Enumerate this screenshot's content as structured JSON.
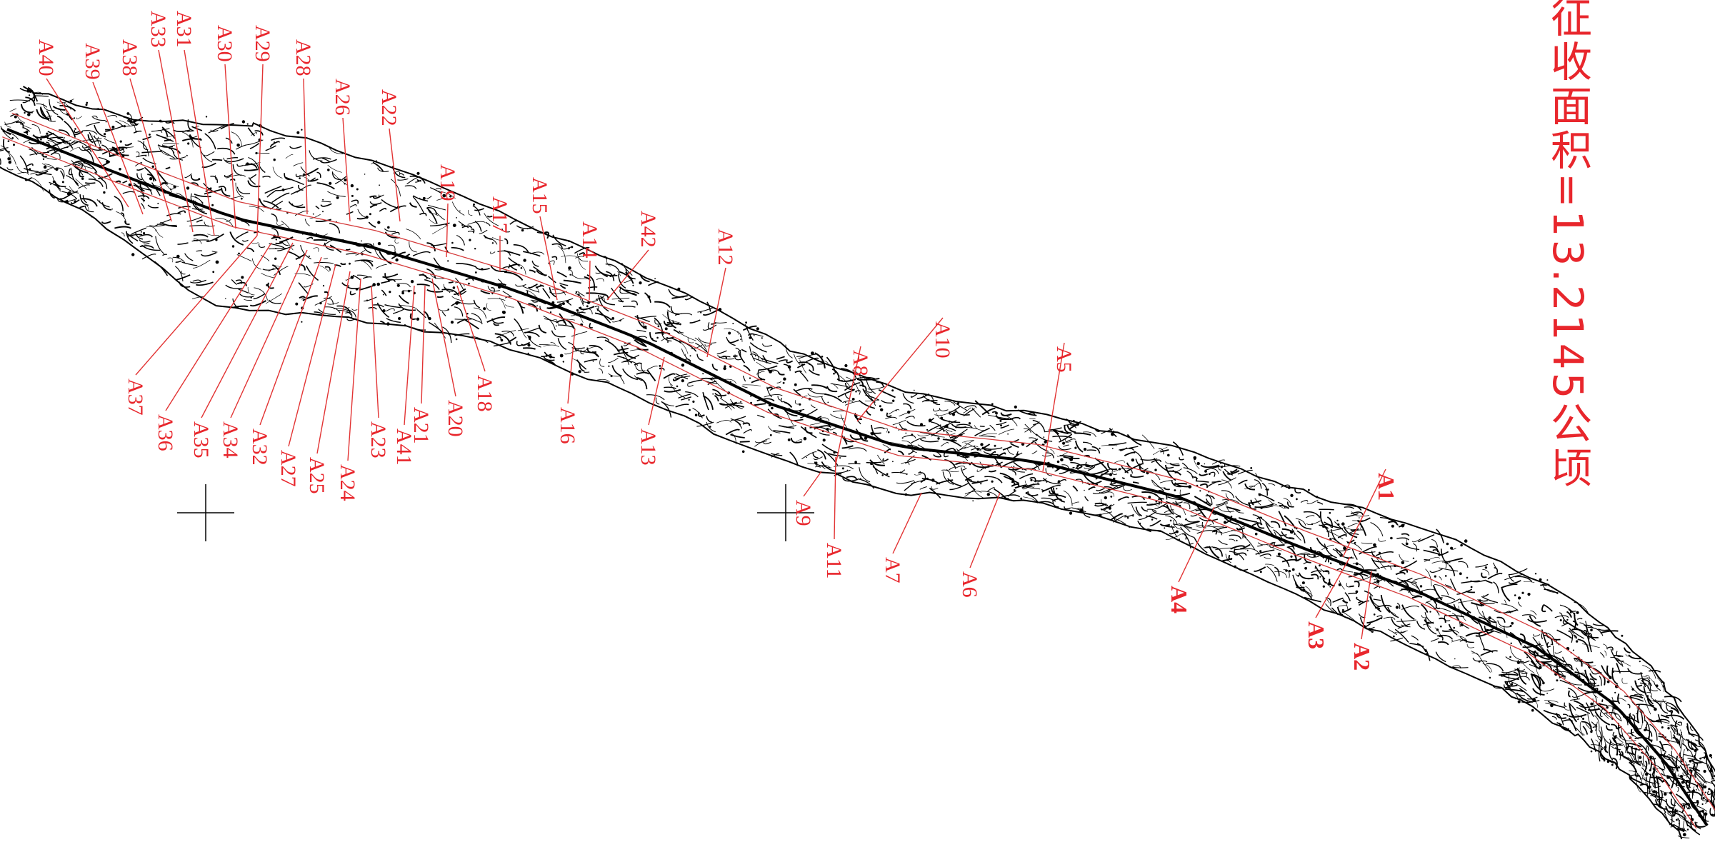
{
  "area_note": "征收面积=13.2145公顷",
  "colors": {
    "annotation": "#e8262c",
    "terrain": "#000000",
    "background": "#ffffff"
  },
  "parcels": [
    {
      "id": "A1",
      "bold": true
    },
    {
      "id": "A2",
      "bold": true
    },
    {
      "id": "A3",
      "bold": true
    },
    {
      "id": "A4",
      "bold": true
    },
    {
      "id": "A5"
    },
    {
      "id": "A6"
    },
    {
      "id": "A7"
    },
    {
      "id": "A8"
    },
    {
      "id": "A9"
    },
    {
      "id": "A10"
    },
    {
      "id": "A11"
    },
    {
      "id": "A12"
    },
    {
      "id": "A13"
    },
    {
      "id": "A14"
    },
    {
      "id": "A15"
    },
    {
      "id": "A16"
    },
    {
      "id": "A17"
    },
    {
      "id": "A18"
    },
    {
      "id": "A19"
    },
    {
      "id": "A20"
    },
    {
      "id": "A21"
    },
    {
      "id": "A22"
    },
    {
      "id": "A23"
    },
    {
      "id": "A24"
    },
    {
      "id": "A25"
    },
    {
      "id": "A26"
    },
    {
      "id": "A27"
    },
    {
      "id": "A28"
    },
    {
      "id": "A29"
    },
    {
      "id": "A30"
    },
    {
      "id": "A31"
    },
    {
      "id": "A32"
    },
    {
      "id": "A33"
    },
    {
      "id": "A34"
    },
    {
      "id": "A35"
    },
    {
      "id": "A36"
    },
    {
      "id": "A37"
    },
    {
      "id": "A38"
    },
    {
      "id": "A39"
    },
    {
      "id": "A40"
    },
    {
      "id": "A41"
    },
    {
      "id": "A42"
    }
  ]
}
